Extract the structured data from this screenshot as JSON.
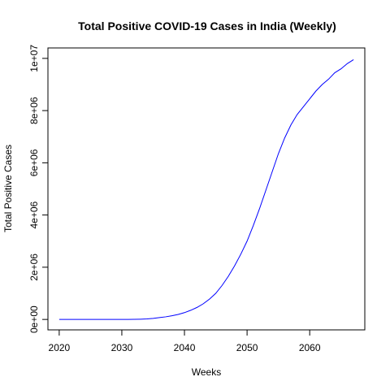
{
  "chart_data": {
    "type": "line",
    "title": "Total Positive COVID-19 Cases in India (Weekly)",
    "xlabel": "Weeks",
    "ylabel": "Total Positive Cases",
    "xlim": [
      2018.2,
      2068.8
    ],
    "ylim": [
      -400000,
      10400000
    ],
    "x_ticks": [
      2020,
      2030,
      2040,
      2050,
      2060
    ],
    "x_tick_labels": [
      "2020",
      "2030",
      "2040",
      "2050",
      "2060"
    ],
    "y_ticks": [
      0,
      2000000,
      4000000,
      6000000,
      8000000,
      10000000
    ],
    "y_tick_labels": [
      "0e+00",
      "2e+06",
      "4e+06",
      "6e+06",
      "8e+06",
      "1e+07"
    ],
    "grid": false,
    "series": [
      {
        "color": "#0000ff",
        "x": [
          2020,
          2021,
          2022,
          2023,
          2024,
          2025,
          2026,
          2027,
          2028,
          2029,
          2030,
          2031,
          2032,
          2033,
          2034,
          2035,
          2036,
          2037,
          2038,
          2039,
          2040,
          2041,
          2042,
          2043,
          2044,
          2045,
          2046,
          2047,
          2048,
          2049,
          2050,
          2051,
          2052,
          2053,
          2054,
          2055,
          2056,
          2057,
          2058,
          2059,
          2060,
          2061,
          2062,
          2063,
          2064,
          2065,
          2066,
          2067
        ],
        "y": [
          0,
          0,
          0,
          0,
          0,
          0,
          0,
          0,
          0,
          0,
          1000,
          2000,
          5000,
          10000,
          20000,
          40000,
          70000,
          100000,
          140000,
          190000,
          260000,
          350000,
          460000,
          600000,
          780000,
          1000000,
          1300000,
          1650000,
          2050000,
          2500000,
          3000000,
          3600000,
          4250000,
          4950000,
          5650000,
          6350000,
          6950000,
          7450000,
          7850000,
          8150000,
          8450000,
          8750000,
          9000000,
          9200000,
          9450000,
          9600000,
          9800000,
          9950000
        ]
      }
    ]
  }
}
